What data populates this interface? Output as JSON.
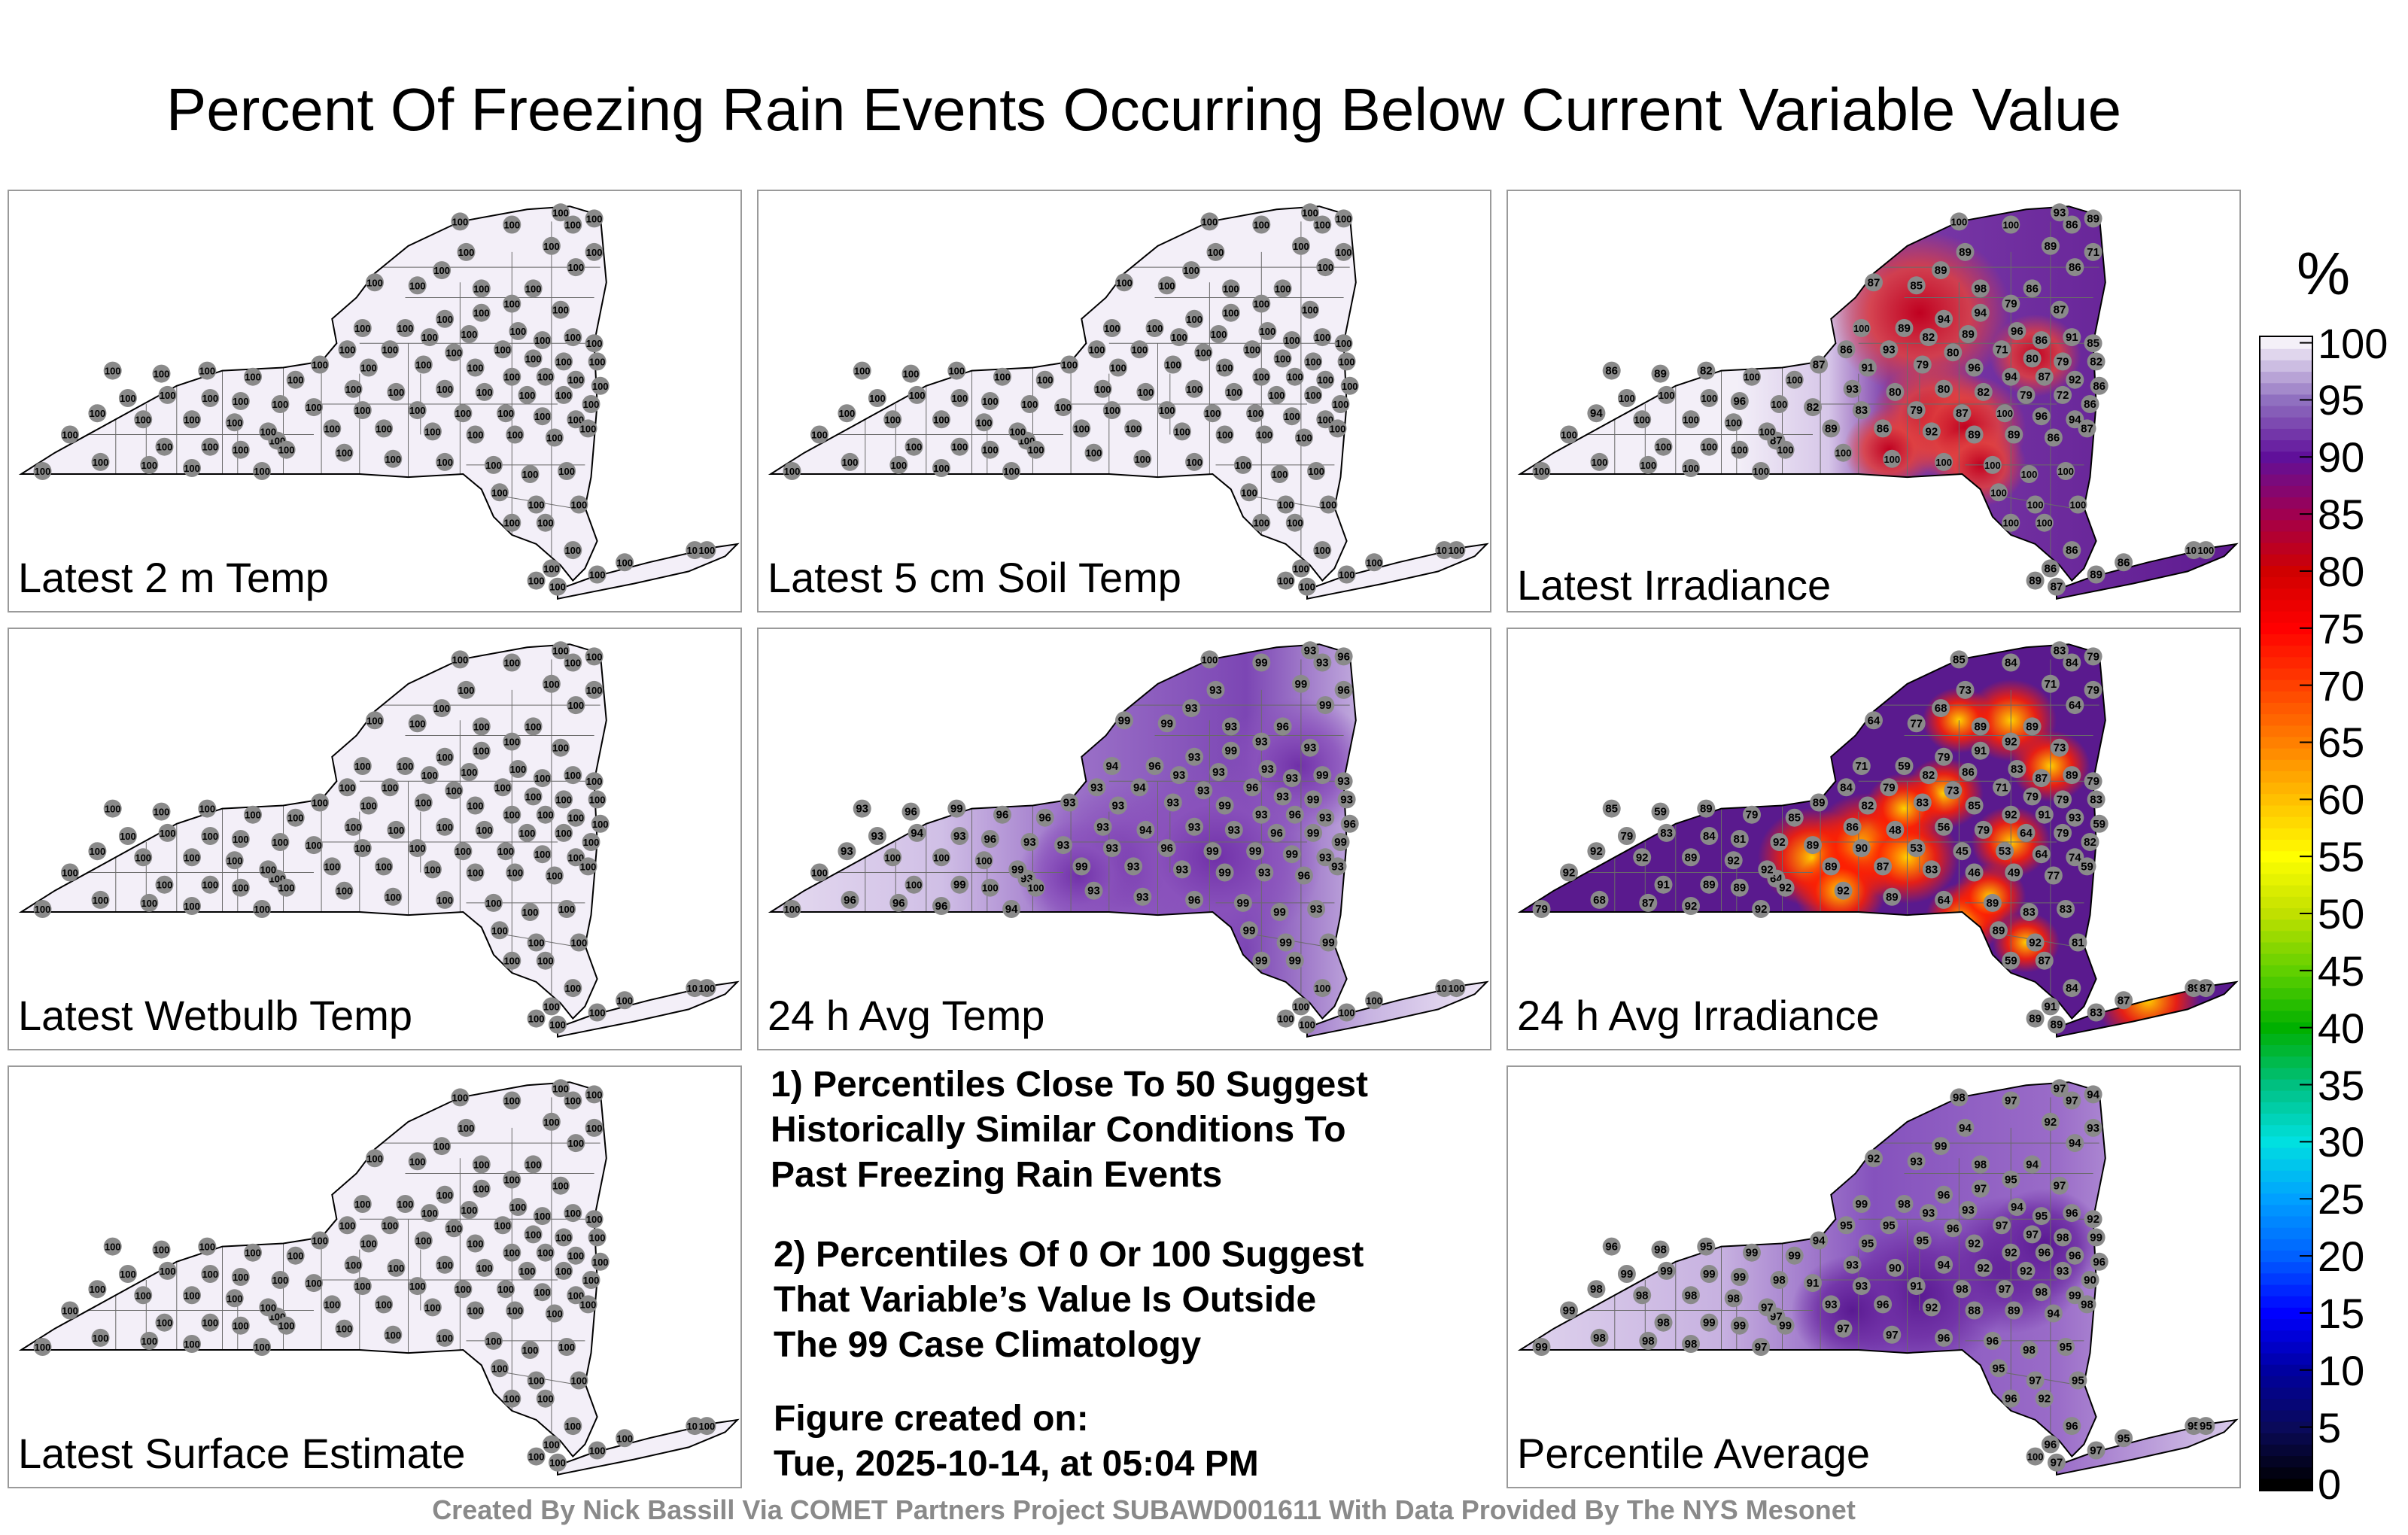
{
  "title": "Percent Of Freezing Rain Events Occurring Below Current Variable Value",
  "panels": [
    {
      "id": "t2m",
      "label": "Latest 2 m Temp",
      "style": "uniform",
      "station_value": 100
    },
    {
      "id": "soil",
      "label": "Latest 5 cm Soil Temp",
      "style": "uniform",
      "station_value": 100
    },
    {
      "id": "irr",
      "label": "Latest Irradiance",
      "style": "irr"
    },
    {
      "id": "wb",
      "label": "Latest Wetbulb Temp",
      "style": "uniform",
      "station_value": 100
    },
    {
      "id": "avgt",
      "label": "24 h Avg Temp",
      "style": "avgt"
    },
    {
      "id": "avgirr",
      "label": "24 h Avg Irradiance",
      "style": "avgirr"
    },
    {
      "id": "sfc",
      "label": "Latest Surface Estimate",
      "style": "uniform",
      "station_value": 100
    },
    {
      "id": "pctavg",
      "label": "Percentile Average",
      "style": "pctavg"
    }
  ],
  "notes": {
    "note1": "1) Percentiles Close To 50 Suggest\nHistorically Similar Conditions To\nPast Freezing Rain Events",
    "note2": "2) Percentiles Of 0 Or 100 Suggest\nThat Variable’s Value Is Outside\nThe 99 Case Climatology",
    "created": "Figure created on:\nTue, 2025-10-14, at 05:04 PM"
  },
  "credit": "Created By Nick Bassill Via COMET Partners Project SUBAWD001611 With Data Provided By The NYS Mesonet",
  "chart_data": {
    "type": "heatmap",
    "colorbar": {
      "unit": "%",
      "ticks": [
        0,
        5,
        10,
        15,
        20,
        25,
        30,
        35,
        40,
        45,
        50,
        55,
        60,
        65,
        70,
        75,
        80,
        85,
        90,
        95,
        100
      ],
      "range": [
        0,
        100
      ],
      "colors": [
        "#000000",
        "#0a0a5a",
        "#0000a0",
        "#0000ff",
        "#0060ff",
        "#00a0ff",
        "#00e0e0",
        "#00c080",
        "#00b000",
        "#60d000",
        "#c0e000",
        "#ffff00",
        "#ffc000",
        "#ff8000",
        "#ff4000",
        "#ff0000",
        "#d00000",
        "#a00050",
        "#60109a",
        "#9070c0",
        "#f4f0f8"
      ]
    },
    "panels": {
      "uniform": {
        "values": [
          100,
          100,
          100,
          100,
          100,
          100,
          100,
          100,
          100,
          100,
          100,
          100,
          100,
          100,
          100,
          100,
          100,
          100,
          100,
          100,
          100,
          100,
          100,
          100,
          100,
          100,
          100,
          100,
          100,
          100,
          100,
          100,
          100,
          100,
          100,
          100,
          100,
          100,
          100,
          100,
          100,
          100,
          100,
          100,
          100,
          100,
          100,
          100,
          100,
          100,
          100,
          100,
          100,
          100,
          100,
          100,
          100,
          100,
          100,
          100,
          100,
          100,
          100,
          100,
          100,
          100,
          100,
          100,
          100,
          100,
          100,
          100,
          100,
          100,
          100,
          100,
          100,
          100,
          100,
          100,
          100,
          100,
          100,
          100,
          100,
          100,
          100,
          100,
          100,
          100,
          100,
          100,
          100,
          100,
          100,
          100,
          100,
          100,
          100,
          100,
          100,
          100,
          100,
          100,
          100,
          100,
          100,
          100,
          100
        ]
      },
      "irr": {
        "values": [
          100,
          100,
          93,
          86,
          89,
          89,
          89,
          71,
          86,
          89,
          98,
          87,
          85,
          86,
          79,
          94,
          94,
          87,
          100,
          89,
          82,
          89,
          96,
          86,
          91,
          85,
          86,
          93,
          80,
          71,
          80,
          79,
          82,
          87,
          91,
          79,
          96,
          94,
          87,
          92,
          86,
          93,
          80,
          80,
          82,
          79,
          72,
          86,
          82,
          83,
          79,
          87,
          100,
          96,
          94,
          87,
          89,
          86,
          92,
          89,
          89,
          86,
          87,
          86,
          89,
          82,
          100,
          100,
          100,
          100,
          100,
          96,
          100,
          94,
          100,
          100,
          100,
          100,
          100,
          100,
          100,
          100,
          100,
          100,
          100,
          100,
          100,
          100,
          100,
          100,
          100,
          100,
          100,
          100,
          100,
          100,
          100,
          100,
          100,
          86,
          86,
          89,
          87,
          89,
          86,
          100,
          100,
          100,
          100
        ]
      },
      "avgt": {
        "values": [
          100,
          99,
          93,
          93,
          96,
          93,
          99,
          96,
          99,
          93,
          93,
          99,
          99,
          96,
          93,
          99,
          93,
          93,
          94,
          96,
          93,
          93,
          93,
          93,
          99,
          93,
          93,
          94,
          93,
          96,
          93,
          99,
          93,
          93,
          93,
          93,
          99,
          93,
          96,
          93,
          96,
          93,
          94,
          93,
          93,
          96,
          99,
          99,
          93,
          93,
          96,
          99,
          99,
          99,
          93,
          93,
          99,
          93,
          93,
          99,
          93,
          96,
          93,
          93,
          96,
          99,
          96,
          96,
          93,
          94,
          93,
          96,
          93,
          93,
          100,
          100,
          100,
          99,
          100,
          100,
          99,
          100,
          100,
          100,
          96,
          96,
          96,
          94,
          93,
          93,
          96,
          99,
          99,
          93,
          99,
          99,
          99,
          99,
          99,
          100,
          100,
          100,
          100,
          100,
          100,
          100,
          100,
          100,
          100
        ]
      },
      "avgirr": {
        "values": [
          85,
          84,
          83,
          84,
          79,
          73,
          71,
          79,
          64,
          68,
          89,
          64,
          77,
          89,
          92,
          91,
          79,
          73,
          71,
          59,
          82,
          86,
          83,
          87,
          89,
          79,
          84,
          79,
          73,
          71,
          79,
          79,
          83,
          89,
          82,
          83,
          85,
          92,
          91,
          93,
          59,
          86,
          48,
          56,
          79,
          64,
          79,
          82,
          89,
          90,
          53,
          45,
          53,
          64,
          74,
          59,
          89,
          87,
          83,
          46,
          49,
          77,
          64,
          85,
          59,
          89,
          79,
          85,
          79,
          83,
          84,
          81,
          92,
          92,
          92,
          89,
          92,
          92,
          92,
          91,
          89,
          89,
          92,
          79,
          68,
          87,
          92,
          92,
          92,
          89,
          64,
          89,
          83,
          83,
          89,
          92,
          81,
          59,
          87,
          84,
          91,
          89,
          89,
          83,
          87,
          89,
          87,
          59,
          89
        ]
      },
      "pctavg": {
        "values": [
          98,
          97,
          97,
          97,
          94,
          94,
          92,
          93,
          94,
          99,
          98,
          92,
          93,
          94,
          95,
          97,
          96,
          97,
          99,
          98,
          93,
          93,
          94,
          95,
          96,
          92,
          95,
          95,
          96,
          97,
          97,
          98,
          99,
          94,
          95,
          95,
          92,
          92,
          96,
          96,
          96,
          93,
          90,
          94,
          92,
          92,
          93,
          90,
          91,
          93,
          91,
          98,
          97,
          98,
          99,
          98,
          93,
          96,
          92,
          88,
          89,
          94,
          97,
          96,
          98,
          95,
          99,
          99,
          99,
          99,
          99,
          99,
          98,
          98,
          98,
          98,
          98,
          97,
          99,
          98,
          99,
          99,
          99,
          99,
          98,
          98,
          98,
          97,
          97,
          97,
          96,
          96,
          98,
          95,
          95,
          97,
          95,
          96,
          92,
          96,
          96,
          100,
          97,
          97,
          95,
          95,
          95,
          99,
          99
        ]
      }
    }
  }
}
